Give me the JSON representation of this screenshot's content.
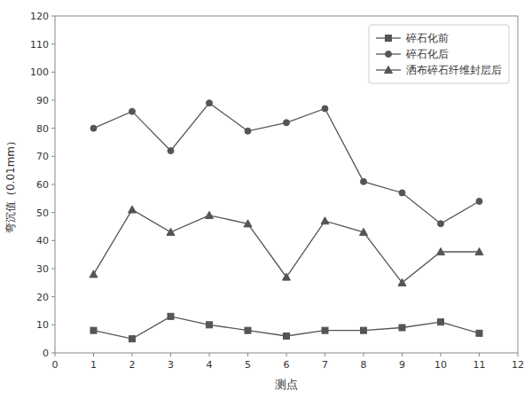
{
  "chart_data": {
    "type": "line",
    "x": [
      1,
      2,
      3,
      4,
      5,
      6,
      7,
      8,
      9,
      10,
      11
    ],
    "series": [
      {
        "name": "碎石化前",
        "color": "#555555",
        "marker": "square",
        "values": [
          8,
          5,
          13,
          10,
          8,
          6,
          8,
          8,
          9,
          11,
          7
        ]
      },
      {
        "name": "碎石化后",
        "color": "#555555",
        "marker": "circle",
        "values": [
          80,
          86,
          72,
          89,
          79,
          82,
          87,
          61,
          57,
          46,
          54
        ]
      },
      {
        "name": "洒布碎石纤维封层后",
        "color": "#555555",
        "marker": "triangle",
        "values": [
          28,
          51,
          43,
          49,
          46,
          27,
          47,
          43,
          25,
          36,
          36
        ]
      }
    ],
    "xlabel": "测点",
    "ylabel": "弯沉值（0.01mm）",
    "xlim": [
      0,
      12
    ],
    "ylim": [
      0,
      120
    ],
    "xticks": [
      0,
      1,
      2,
      3,
      4,
      5,
      6,
      7,
      8,
      9,
      10,
      11,
      12
    ],
    "yticks": [
      0,
      10,
      20,
      30,
      40,
      50,
      60,
      70,
      80,
      90,
      100,
      110,
      120
    ],
    "grid": false,
    "legend": "upper right"
  }
}
